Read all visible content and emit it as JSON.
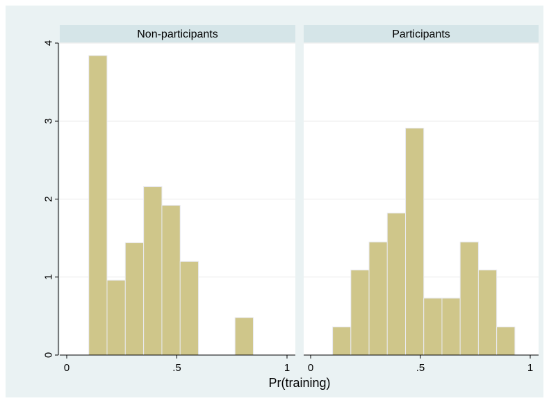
{
  "chart_data": {
    "type": "bar",
    "subtype": "histogram",
    "xlabel": "Pr(training)",
    "ylabel": "",
    "ylim": [
      0,
      4
    ],
    "xlim": [
      0,
      1
    ],
    "yticks": [
      0,
      1,
      2,
      3,
      4
    ],
    "ytick_labels": [
      "0",
      "1",
      "2",
      "3",
      "4"
    ],
    "xticks": [
      0,
      0.5,
      1
    ],
    "xtick_labels": [
      "0",
      ".5",
      "1"
    ],
    "grid": true,
    "legend": "none",
    "bar_color": "#cfc68a",
    "bar_edge_color": "#e9eaf0",
    "panels": [
      {
        "title": "Non-participants",
        "bins": [
          {
            "x0": 0.1,
            "x1": 0.183,
            "value": 3.84
          },
          {
            "x0": 0.183,
            "x1": 0.266,
            "value": 0.96
          },
          {
            "x0": 0.266,
            "x1": 0.349,
            "value": 1.44
          },
          {
            "x0": 0.349,
            "x1": 0.432,
            "value": 2.16
          },
          {
            "x0": 0.432,
            "x1": 0.515,
            "value": 1.92
          },
          {
            "x0": 0.515,
            "x1": 0.598,
            "value": 1.2
          },
          {
            "x0": 0.764,
            "x1": 0.847,
            "value": 0.48
          }
        ]
      },
      {
        "title": "Participants",
        "bins": [
          {
            "x0": 0.1,
            "x1": 0.183,
            "value": 0.36
          },
          {
            "x0": 0.183,
            "x1": 0.266,
            "value": 1.09
          },
          {
            "x0": 0.266,
            "x1": 0.349,
            "value": 1.45
          },
          {
            "x0": 0.349,
            "x1": 0.432,
            "value": 1.82
          },
          {
            "x0": 0.432,
            "x1": 0.515,
            "value": 2.91
          },
          {
            "x0": 0.515,
            "x1": 0.598,
            "value": 0.73
          },
          {
            "x0": 0.598,
            "x1": 0.681,
            "value": 0.73
          },
          {
            "x0": 0.681,
            "x1": 0.764,
            "value": 1.45
          },
          {
            "x0": 0.764,
            "x1": 0.847,
            "value": 1.09
          },
          {
            "x0": 0.847,
            "x1": 0.93,
            "value": 0.36
          }
        ]
      }
    ]
  }
}
